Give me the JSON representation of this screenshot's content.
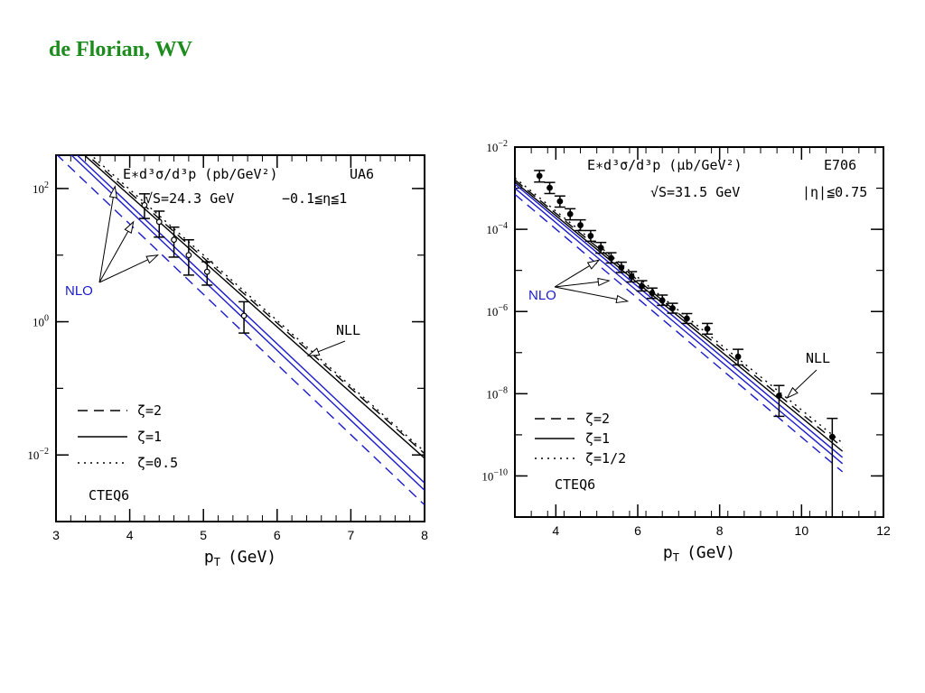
{
  "slide_title": "de Florian, WV",
  "colors": {
    "title": "#1d8b1d",
    "nlo": "#1a1acc",
    "nll": "#000000"
  },
  "chart_data": [
    {
      "id": "ua6",
      "type": "line",
      "xlabel": "p",
      "xlabel_sub": "T",
      "xlabel_unit": "(GeV)",
      "yscale": "log",
      "xlim": [
        3,
        8
      ],
      "ylim_log10": [
        -3.0,
        2.5
      ],
      "xticks": [
        "3",
        "4",
        "5",
        "6",
        "7",
        "8"
      ],
      "yticks": [
        {
          "value": 2,
          "base": "10",
          "exp": "2"
        },
        {
          "value": 0,
          "base": "10",
          "exp": "0"
        },
        {
          "value": -2,
          "base": "10",
          "exp": "−2"
        }
      ],
      "header": [
        "E∗d³σ/d³p (pb/GeV²)",
        "UA6"
      ],
      "subheader": [
        "√S=24.3 GeV",
        "−0.1≦η≦1"
      ],
      "nlo_label": "NLO",
      "nll_label": "NLL",
      "pdf_label": "CTEQ6",
      "legend": [
        {
          "style": "dashed",
          "label": "ζ=2"
        },
        {
          "style": "solid",
          "label": "ζ=1"
        },
        {
          "style": "dotted",
          "label": "ζ=0.5"
        }
      ],
      "series": [
        {
          "name": "NLL ζ=2",
          "group": "NLL",
          "style": "dashed",
          "x": [
            3,
            8
          ],
          "y_log10": [
            2.92,
            -1.98
          ]
        },
        {
          "name": "NLL ζ=1",
          "group": "NLL",
          "style": "solid",
          "x": [
            3,
            8
          ],
          "y_log10": [
            2.88,
            -2.05
          ]
        },
        {
          "name": "NLL ζ=0.5",
          "group": "NLL",
          "style": "dotted",
          "x": [
            3,
            8
          ],
          "y_log10": [
            2.97,
            -1.95
          ]
        },
        {
          "name": "NLO ζ=2",
          "group": "NLO",
          "style": "dashed",
          "x": [
            3,
            8
          ],
          "y_log10": [
            2.52,
            -2.75
          ]
        },
        {
          "name": "NLO ζ=1",
          "group": "NLO",
          "style": "solid",
          "x": [
            3,
            8
          ],
          "y_log10": [
            2.72,
            -2.53
          ]
        },
        {
          "name": "NLO ζ=0.5",
          "group": "NLO",
          "style": "solid",
          "x": [
            3,
            8
          ],
          "y_log10": [
            2.8,
            -2.42
          ]
        }
      ],
      "points": [
        {
          "x": 4.2,
          "y_log10": 1.75,
          "lo": 1.55,
          "hi": 1.92
        },
        {
          "x": 4.4,
          "y_log10": 1.5,
          "lo": 1.27,
          "hi": 1.66
        },
        {
          "x": 4.6,
          "y_log10": 1.23,
          "lo": 0.97,
          "hi": 1.42
        },
        {
          "x": 4.8,
          "y_log10": 1.0,
          "lo": 0.7,
          "hi": 1.23
        },
        {
          "x": 5.05,
          "y_log10": 0.75,
          "lo": 0.55,
          "hi": 0.9
        },
        {
          "x": 5.55,
          "y_log10": 0.09,
          "lo": -0.17,
          "hi": 0.3
        }
      ],
      "nlo_arrow_targets": [
        {
          "x": 3.8,
          "y_log10": 2.03
        },
        {
          "x": 4.05,
          "y_log10": 1.5
        },
        {
          "x": 4.38,
          "y_log10": 1.0
        }
      ],
      "nll_arrow_target": {
        "x": 6.42,
        "y_log10": -0.51
      }
    },
    {
      "id": "e706",
      "type": "line",
      "xlabel": "p",
      "xlabel_sub": "T",
      "xlabel_unit": "(GeV)",
      "yscale": "log",
      "xlim": [
        3,
        12
      ],
      "ylim_log10": [
        -11,
        -2
      ],
      "xticks": [
        "4",
        "6",
        "8",
        "10",
        "12"
      ],
      "yticks": [
        {
          "value": -2,
          "base": "10",
          "exp": "−2"
        },
        {
          "value": -4,
          "base": "10",
          "exp": "−4"
        },
        {
          "value": -6,
          "base": "10",
          "exp": "−6"
        },
        {
          "value": -8,
          "base": "10",
          "exp": "−8"
        },
        {
          "value": -10,
          "base": "10",
          "exp": "−10"
        }
      ],
      "header": [
        "E∗d³σ/d³p (μb/GeV²)",
        "E706"
      ],
      "subheader": [
        "√S=31.5 GeV",
        "|η|≦0.75"
      ],
      "nlo_label": "NLO",
      "nll_label": "NLL",
      "pdf_label": "CTEQ6",
      "legend": [
        {
          "style": "dashed",
          "label": "ζ=2"
        },
        {
          "style": "solid",
          "label": "ζ=1"
        },
        {
          "style": "dotted",
          "label": "ζ=1/2"
        }
      ],
      "series": [
        {
          "name": "NLL ζ=2",
          "group": "NLL",
          "style": "dashed",
          "x": [
            3,
            11
          ],
          "y_log10": [
            -2.8,
            -9.3
          ]
        },
        {
          "name": "NLL ζ=1",
          "group": "NLL",
          "style": "solid",
          "x": [
            3,
            11
          ],
          "y_log10": [
            -2.85,
            -9.4
          ]
        },
        {
          "name": "NLL ζ=1/2",
          "group": "NLL",
          "style": "dotted",
          "x": [
            3,
            11
          ],
          "y_log10": [
            -2.75,
            -9.2
          ]
        },
        {
          "name": "NLO ζ=2",
          "group": "NLO",
          "style": "dashed",
          "x": [
            3,
            11
          ],
          "y_log10": [
            -3.15,
            -9.9
          ]
        },
        {
          "name": "NLO ζ=1",
          "group": "NLO",
          "style": "solid",
          "x": [
            3,
            11
          ],
          "y_log10": [
            -3.0,
            -9.7
          ]
        },
        {
          "name": "NLO ζ=1/2",
          "group": "NLO",
          "style": "solid",
          "x": [
            3,
            11
          ],
          "y_log10": [
            -2.9,
            -9.55
          ]
        }
      ],
      "points": [
        {
          "x": 3.6,
          "y_log10": -2.7,
          "lo": -2.85,
          "hi": -2.57
        },
        {
          "x": 3.85,
          "y_log10": -2.99,
          "lo": -3.13,
          "hi": -2.86
        },
        {
          "x": 4.1,
          "y_log10": -3.32,
          "lo": -3.46,
          "hi": -3.19
        },
        {
          "x": 4.35,
          "y_log10": -3.63,
          "lo": -3.77,
          "hi": -3.5
        },
        {
          "x": 4.6,
          "y_log10": -3.9,
          "lo": -4.03,
          "hi": -3.77
        },
        {
          "x": 4.85,
          "y_log10": -4.16,
          "lo": -4.29,
          "hi": -4.03
        },
        {
          "x": 5.1,
          "y_log10": -4.45,
          "lo": -4.58,
          "hi": -4.32
        },
        {
          "x": 5.35,
          "y_log10": -4.7,
          "lo": -4.82,
          "hi": -4.57
        },
        {
          "x": 5.6,
          "y_log10": -4.93,
          "lo": -5.05,
          "hi": -4.8
        },
        {
          "x": 5.85,
          "y_log10": -5.15,
          "lo": -5.28,
          "hi": -5.03
        },
        {
          "x": 6.1,
          "y_log10": -5.38,
          "lo": -5.5,
          "hi": -5.25
        },
        {
          "x": 6.35,
          "y_log10": -5.55,
          "lo": -5.68,
          "hi": -5.43
        },
        {
          "x": 6.6,
          "y_log10": -5.73,
          "lo": -5.85,
          "hi": -5.6
        },
        {
          "x": 6.85,
          "y_log10": -5.92,
          "lo": -6.04,
          "hi": -5.8
        },
        {
          "x": 7.2,
          "y_log10": -6.17,
          "lo": -6.29,
          "hi": -6.05
        },
        {
          "x": 7.7,
          "y_log10": -6.42,
          "lo": -6.55,
          "hi": -6.29
        },
        {
          "x": 8.45,
          "y_log10": -7.1,
          "lo": -7.3,
          "hi": -6.92
        },
        {
          "x": 9.45,
          "y_log10": -8.05,
          "lo": -8.55,
          "hi": -7.8
        },
        {
          "x": 10.75,
          "y_log10": -9.05,
          "lo": -11.0,
          "hi": -8.6
        }
      ],
      "nlo_arrow_targets": [
        {
          "x": 5.05,
          "y_log10": -4.75
        },
        {
          "x": 5.3,
          "y_log10": -5.25
        },
        {
          "x": 5.75,
          "y_log10": -5.75
        }
      ],
      "nll_arrow_target": {
        "x": 9.65,
        "y_log10": -8.1
      }
    }
  ]
}
